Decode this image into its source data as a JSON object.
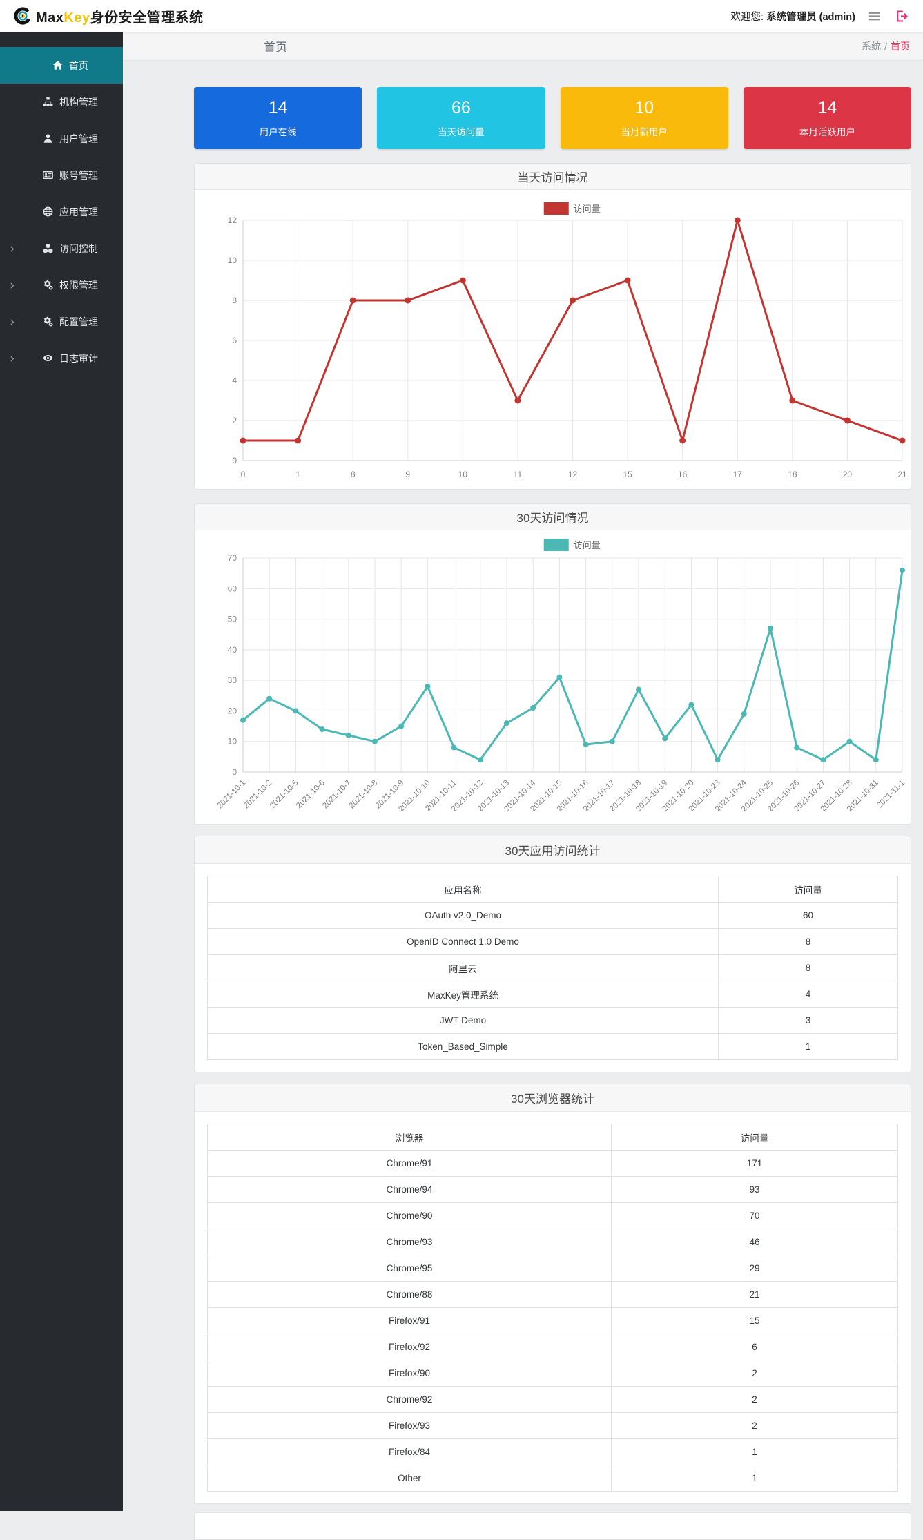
{
  "header": {
    "brand_max": "Max",
    "brand_key": "Key",
    "brand_suffix": "身份安全管理系统",
    "welcome_prefix": "欢迎您:",
    "user": "系统管理员 (admin)"
  },
  "sidebar": {
    "items": [
      {
        "label": "首页",
        "icon": "home-icon",
        "active": true,
        "expandable": false
      },
      {
        "label": "机构管理",
        "icon": "sitemap-icon",
        "active": false,
        "expandable": false
      },
      {
        "label": "用户管理",
        "icon": "user-icon",
        "active": false,
        "expandable": false
      },
      {
        "label": "账号管理",
        "icon": "id-card-icon",
        "active": false,
        "expandable": false
      },
      {
        "label": "应用管理",
        "icon": "globe-icon",
        "active": false,
        "expandable": false
      },
      {
        "label": "访问控制",
        "icon": "cubes-icon",
        "active": false,
        "expandable": true
      },
      {
        "label": "权限管理",
        "icon": "cogs-icon",
        "active": false,
        "expandable": true
      },
      {
        "label": "配置管理",
        "icon": "cogs-icon",
        "active": false,
        "expandable": true
      },
      {
        "label": "日志审计",
        "icon": "eye-icon",
        "active": false,
        "expandable": true
      }
    ]
  },
  "breadcrumb": {
    "page_title": "首页",
    "root": "系统",
    "separator": "/",
    "current": "首页"
  },
  "stat_cards": [
    {
      "value": "14",
      "label": "用户在线",
      "color": "#156bdd"
    },
    {
      "value": "66",
      "label": "当天访问量",
      "color": "#22c4e4"
    },
    {
      "value": "10",
      "label": "当月新用户",
      "color": "#f9ba0b"
    },
    {
      "value": "14",
      "label": "本月活跃用户",
      "color": "#dc3545"
    }
  ],
  "chart_data": [
    {
      "type": "line",
      "title": "当天访问情况",
      "legend": [
        "访问量"
      ],
      "legend_position": "top-center",
      "grid": true,
      "categories": [
        "0",
        "1",
        "8",
        "9",
        "10",
        "11",
        "12",
        "15",
        "16",
        "17",
        "18",
        "20",
        "21"
      ],
      "series": [
        {
          "name": "访问量",
          "color": "#c23531",
          "values": [
            1,
            1,
            8,
            8,
            9,
            3,
            8,
            9,
            1,
            12,
            3,
            2,
            1
          ]
        }
      ],
      "ylim": [
        0,
        12
      ],
      "ytick_step": 2,
      "xlabel_rotate": 0
    },
    {
      "type": "line",
      "title": "30天访问情况",
      "legend": [
        "访问量"
      ],
      "legend_position": "top-center",
      "grid": true,
      "categories": [
        "2021-10-1",
        "2021-10-2",
        "2021-10-5",
        "2021-10-6",
        "2021-10-7",
        "2021-10-8",
        "2021-10-9",
        "2021-10-10",
        "2021-10-11",
        "2021-10-12",
        "2021-10-13",
        "2021-10-14",
        "2021-10-15",
        "2021-10-16",
        "2021-10-17",
        "2021-10-18",
        "2021-10-19",
        "2021-10-20",
        "2021-10-23",
        "2021-10-24",
        "2021-10-25",
        "2021-10-26",
        "2021-10-27",
        "2021-10-28",
        "2021-10-31",
        "2021-11-1"
      ],
      "series": [
        {
          "name": "访问量",
          "color": "#4bb8b4",
          "values": [
            17,
            24,
            20,
            14,
            12,
            10,
            15,
            28,
            8,
            4,
            16,
            21,
            31,
            9,
            10,
            27,
            11,
            22,
            4,
            19,
            47,
            8,
            4,
            10,
            4,
            66
          ]
        }
      ],
      "ylim": [
        0,
        70
      ],
      "ytick_step": 10,
      "xlabel_rotate": 45
    },
    {
      "type": "table",
      "title": "30天应用访问统计",
      "headers": [
        "应用名称",
        "访问量"
      ],
      "col_split": "74%",
      "rows": [
        [
          "OAuth v2.0_Demo",
          "60"
        ],
        [
          "OpenID Connect 1.0 Demo",
          "8"
        ],
        [
          "阿里云",
          "8"
        ],
        [
          "MaxKey管理系统",
          "4"
        ],
        [
          "JWT Demo",
          "3"
        ],
        [
          "Token_Based_Simple",
          "1"
        ]
      ]
    },
    {
      "type": "table",
      "title": "30天浏览器统计",
      "headers": [
        "浏览器",
        "访问量"
      ],
      "col_split": "58.5%",
      "rows": [
        [
          "Chrome/91",
          "171"
        ],
        [
          "Chrome/94",
          "93"
        ],
        [
          "Chrome/90",
          "70"
        ],
        [
          "Chrome/93",
          "46"
        ],
        [
          "Chrome/95",
          "29"
        ],
        [
          "Chrome/88",
          "21"
        ],
        [
          "Firefox/91",
          "15"
        ],
        [
          "Firefox/92",
          "6"
        ],
        [
          "Firefox/90",
          "2"
        ],
        [
          "Chrome/92",
          "2"
        ],
        [
          "Firefox/93",
          "2"
        ],
        [
          "Firefox/84",
          "1"
        ],
        [
          "Other",
          "1"
        ]
      ]
    }
  ]
}
